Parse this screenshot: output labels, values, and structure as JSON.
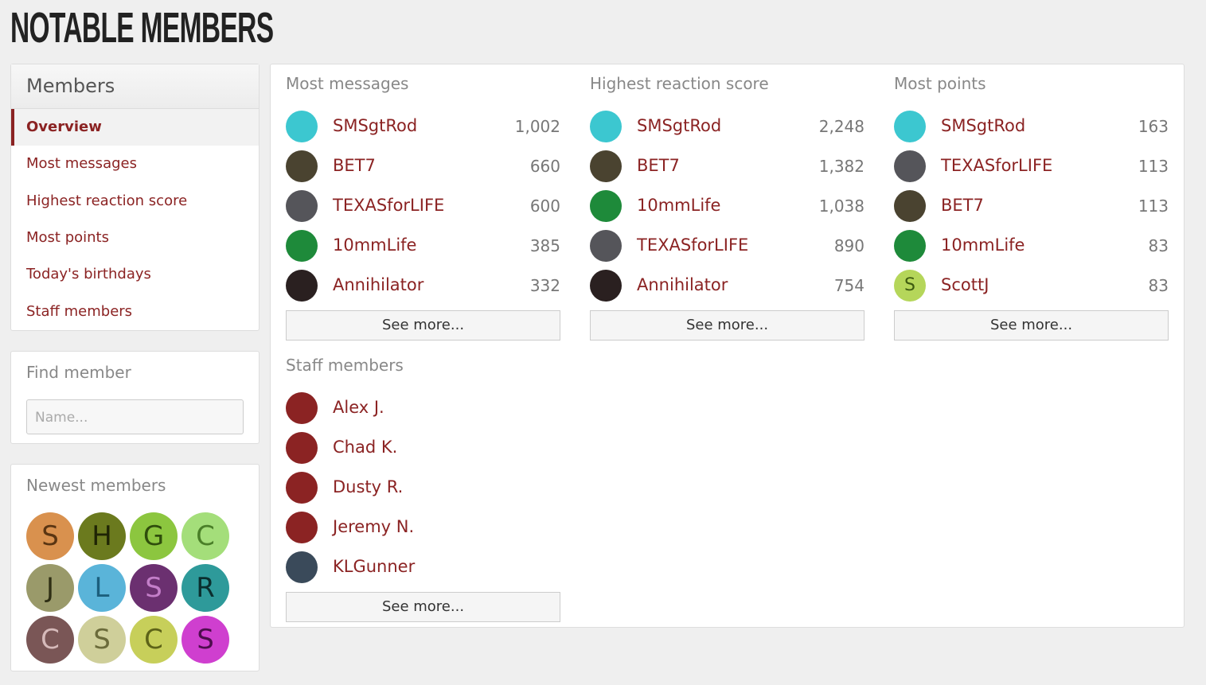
{
  "page_title": "NOTABLE MEMBERS",
  "sidebar": {
    "nav": {
      "title": "Members",
      "items": [
        "Overview",
        "Most messages",
        "Highest reaction score",
        "Most points",
        "Today's birthdays",
        "Staff members"
      ],
      "active": 0
    },
    "find": {
      "title": "Find member",
      "placeholder": "Name..."
    },
    "newest": {
      "title": "Newest members",
      "avatars": [
        {
          "letter": "S",
          "color": "#d9914e",
          "text": "#5a3512"
        },
        {
          "letter": "H",
          "color": "#6b7a1e",
          "text": "#1f2405"
        },
        {
          "letter": "G",
          "color": "#8cc63f",
          "text": "#2f4d0c"
        },
        {
          "letter": "C",
          "color": "#a4de7a",
          "text": "#4a7f28"
        },
        {
          "letter": "J",
          "color": "#9a9a6a",
          "text": "#2e2e14"
        },
        {
          "letter": "L",
          "color": "#5ab4d9",
          "text": "#1c5f7d"
        },
        {
          "letter": "S",
          "color": "#6b3070",
          "text": "#c47fc9"
        },
        {
          "letter": "R",
          "color": "#2e9a9a",
          "text": "#0b2f2f"
        },
        {
          "letter": "C",
          "color": "#7a5656",
          "text": "#d6baba"
        },
        {
          "letter": "S",
          "color": "#cfcf9a",
          "text": "#6b6b3a"
        },
        {
          "letter": "C",
          "color": "#c7cf5a",
          "text": "#5d6318"
        },
        {
          "letter": "S",
          "color": "#cf3fcf",
          "text": "#4d0d4d"
        }
      ]
    }
  },
  "lists": [
    {
      "title": "Most messages",
      "more": "See more...",
      "members": [
        {
          "name": "SMSgtRod",
          "value": "1,002",
          "avatar": "#3cc7d0"
        },
        {
          "name": "BET7",
          "value": "660",
          "avatar": "#4a4330"
        },
        {
          "name": "TEXASforLIFE",
          "value": "600",
          "avatar": "#55555a"
        },
        {
          "name": "10mmLife",
          "value": "385",
          "avatar": "#1e8a3a"
        },
        {
          "name": "Annihilator",
          "value": "332",
          "avatar": "#2a2020"
        }
      ]
    },
    {
      "title": "Highest reaction score",
      "more": "See more...",
      "members": [
        {
          "name": "SMSgtRod",
          "value": "2,248",
          "avatar": "#3cc7d0"
        },
        {
          "name": "BET7",
          "value": "1,382",
          "avatar": "#4a4330"
        },
        {
          "name": "10mmLife",
          "value": "1,038",
          "avatar": "#1e8a3a"
        },
        {
          "name": "TEXASforLIFE",
          "value": "890",
          "avatar": "#55555a"
        },
        {
          "name": "Annihilator",
          "value": "754",
          "avatar": "#2a2020"
        }
      ]
    },
    {
      "title": "Most points",
      "more": "See more...",
      "members": [
        {
          "name": "SMSgtRod",
          "value": "163",
          "avatar": "#3cc7d0"
        },
        {
          "name": "TEXASforLIFE",
          "value": "113",
          "avatar": "#55555a"
        },
        {
          "name": "BET7",
          "value": "113",
          "avatar": "#4a4330"
        },
        {
          "name": "10mmLife",
          "value": "83",
          "avatar": "#1e8a3a"
        },
        {
          "name": "ScottJ",
          "value": "83",
          "avatar": "#b5d65a",
          "letter": "S"
        }
      ]
    }
  ],
  "staff": {
    "title": "Staff members",
    "more": "See more...",
    "members": [
      {
        "name": "Alex J.",
        "avatar": "#8b2323"
      },
      {
        "name": "Chad K.",
        "avatar": "#8b2323"
      },
      {
        "name": "Dusty R.",
        "avatar": "#8b2323"
      },
      {
        "name": "Jeremy N.",
        "avatar": "#8b2323"
      },
      {
        "name": "KLGunner",
        "avatar": "#3a4a5a"
      }
    ]
  }
}
